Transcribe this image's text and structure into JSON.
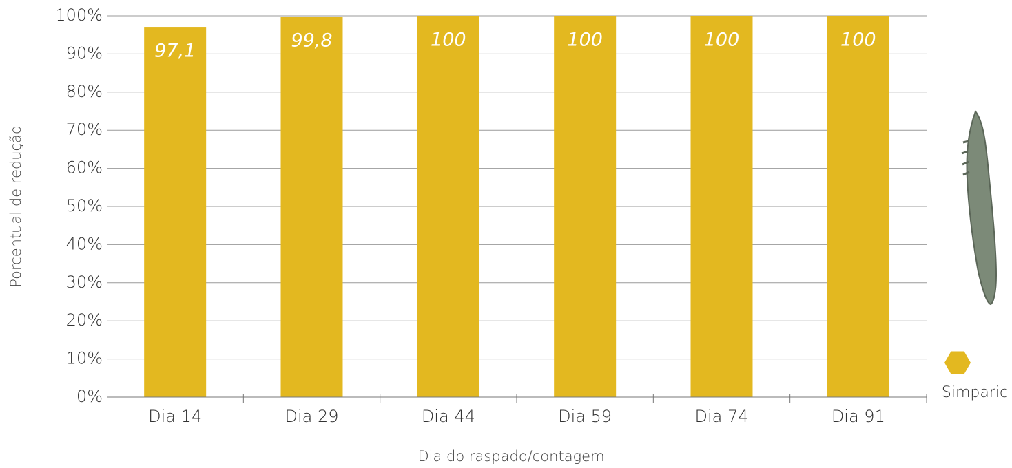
{
  "chart_data": {
    "type": "bar",
    "x_label": "Dia do raspado/contagem",
    "y_label": "Porcentual de redução",
    "categories": [
      "Dia 14",
      "Dia 29",
      "Dia 44",
      "Dia 59",
      "Dia 74",
      "Dia 91"
    ],
    "series": [
      {
        "name": "Simparic",
        "color": "#e3b820",
        "values": [
          97.1,
          99.8,
          100,
          100,
          100,
          100
        ],
        "value_labels": [
          "97,1",
          "99,8",
          "100",
          "100",
          "100",
          "100"
        ]
      }
    ],
    "ylim": [
      0,
      100
    ],
    "yticks": [
      {
        "value": 0,
        "label": "0%"
      },
      {
        "value": 10,
        "label": "10%"
      },
      {
        "value": 20,
        "label": "20%"
      },
      {
        "value": 30,
        "label": "30%"
      },
      {
        "value": 40,
        "label": "40%"
      },
      {
        "value": 50,
        "label": "50%"
      },
      {
        "value": 60,
        "label": "60%"
      },
      {
        "value": 70,
        "label": "70%"
      },
      {
        "value": 80,
        "label": "80%"
      },
      {
        "value": 90,
        "label": "90%"
      },
      {
        "value": 100,
        "label": "100%"
      }
    ],
    "grid": true,
    "legend": "right"
  }
}
